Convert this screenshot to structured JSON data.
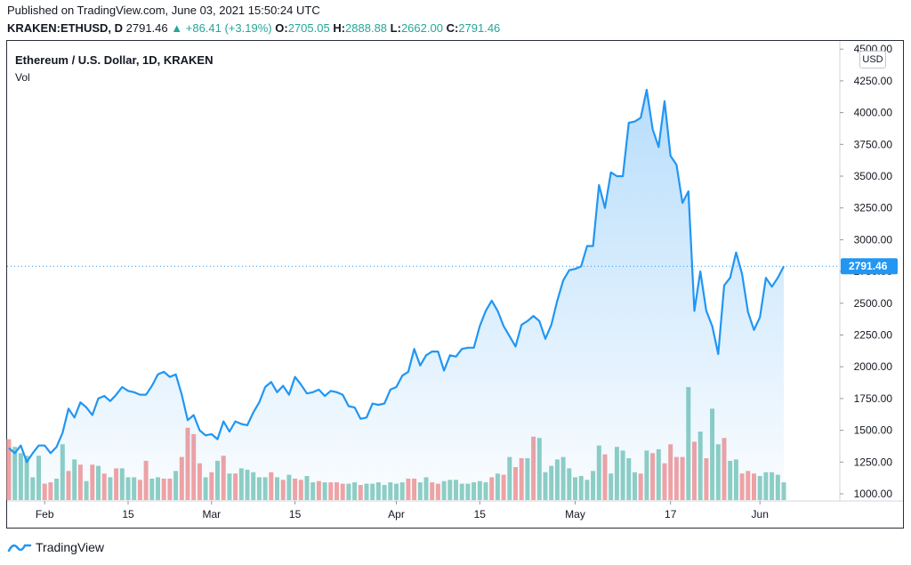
{
  "header": {
    "published": "Published on TradingView.com, June 03, 2021 15:50:24 UTC",
    "symbol": "KRAKEN:ETHUSD, D",
    "last": "2791.46",
    "change": "+86.41 (+3.19%)",
    "open_label": "O:",
    "open": "2705.05",
    "high_label": "H:",
    "high": "2888.88",
    "low_label": "L:",
    "low": "2662.00",
    "close_label": "C:",
    "close": "2791.46",
    "up_color": "#26a69a"
  },
  "pane": {
    "title": "Ethereum / U.S. Dollar, 1D, KRAKEN",
    "vol_label": "Vol",
    "currency_button": "USD"
  },
  "footer": {
    "brand": "TradingView"
  },
  "chart_data": {
    "type": "area",
    "last_price_label": "2791.46",
    "line_color": "#2196f3",
    "vol_up_color": "#8fcfc4",
    "vol_down_color": "#f3a3a3",
    "ylim": [
      950,
      4500
    ],
    "y_ticks": [
      "1000.00",
      "1250.00",
      "1500.00",
      "1750.00",
      "2000.00",
      "2250.00",
      "2500.00",
      "2750.00",
      "3000.00",
      "3250.00",
      "3500.00",
      "3750.00",
      "4000.00",
      "4250.00",
      "4500.00"
    ],
    "x_ticks": [
      {
        "label": "Feb",
        "index": 6
      },
      {
        "label": "15",
        "index": 20
      },
      {
        "label": "Mar",
        "index": 34
      },
      {
        "label": "15",
        "index": 48
      },
      {
        "label": "Apr",
        "index": 65
      },
      {
        "label": "15",
        "index": 79
      },
      {
        "label": "May",
        "index": 95
      },
      {
        "label": "17",
        "index": 111
      },
      {
        "label": "Jun",
        "index": 126
      }
    ],
    "close": [
      1360,
      1320,
      1380,
      1250,
      1320,
      1380,
      1380,
      1320,
      1370,
      1480,
      1670,
      1600,
      1720,
      1680,
      1620,
      1750,
      1770,
      1730,
      1780,
      1840,
      1810,
      1800,
      1780,
      1780,
      1850,
      1940,
      1960,
      1920,
      1940,
      1780,
      1580,
      1620,
      1500,
      1460,
      1470,
      1430,
      1570,
      1490,
      1570,
      1550,
      1540,
      1640,
      1720,
      1840,
      1880,
      1800,
      1850,
      1780,
      1920,
      1860,
      1790,
      1800,
      1820,
      1770,
      1810,
      1800,
      1780,
      1690,
      1680,
      1590,
      1600,
      1710,
      1700,
      1710,
      1820,
      1840,
      1930,
      1960,
      2140,
      2010,
      2090,
      2120,
      2120,
      1970,
      2090,
      2080,
      2140,
      2150,
      2150,
      2320,
      2440,
      2520,
      2440,
      2320,
      2240,
      2160,
      2330,
      2360,
      2400,
      2360,
      2220,
      2330,
      2520,
      2680,
      2760,
      2770,
      2790,
      2950,
      2950,
      3430,
      3250,
      3530,
      3500,
      3500,
      3920,
      3930,
      3960,
      4180,
      3870,
      3730,
      4090,
      3660,
      3590,
      3290,
      3380,
      2440,
      2750,
      2440,
      2320,
      2100,
      2640,
      2700,
      2900,
      2730,
      2430,
      2290,
      2390,
      2700,
      2630,
      2700,
      2791.46
    ],
    "volume": [
      1430,
      1370,
      1320,
      1300,
      1130,
      1300,
      1080,
      1090,
      1120,
      1390,
      1180,
      1270,
      1230,
      1100,
      1230,
      1220,
      1160,
      1130,
      1200,
      1200,
      1130,
      1130,
      1110,
      1260,
      1120,
      1130,
      1120,
      1120,
      1180,
      1290,
      1520,
      1470,
      1240,
      1130,
      1170,
      1260,
      1300,
      1160,
      1160,
      1200,
      1190,
      1170,
      1130,
      1130,
      1170,
      1130,
      1110,
      1150,
      1120,
      1110,
      1140,
      1090,
      1100,
      1090,
      1090,
      1090,
      1080,
      1080,
      1090,
      1070,
      1080,
      1080,
      1090,
      1070,
      1090,
      1080,
      1090,
      1120,
      1120,
      1090,
      1130,
      1090,
      1080,
      1100,
      1110,
      1110,
      1080,
      1080,
      1090,
      1100,
      1090,
      1130,
      1160,
      1150,
      1290,
      1210,
      1280,
      1280,
      1450,
      1440,
      1170,
      1220,
      1270,
      1290,
      1200,
      1130,
      1140,
      1110,
      1180,
      1380,
      1310,
      1160,
      1370,
      1340,
      1280,
      1170,
      1160,
      1340,
      1320,
      1350,
      1240,
      1390,
      1290,
      1290,
      1840,
      1410,
      1490,
      1280,
      1670,
      1390,
      1440,
      1260,
      1270,
      1160,
      1180,
      1160,
      1140,
      1170,
      1170,
      1150,
      1090
    ],
    "volume_up": [
      false,
      true,
      true,
      true,
      true,
      true,
      false,
      false,
      true,
      true,
      false,
      true,
      false,
      true,
      false,
      true,
      false,
      true,
      false,
      true,
      true,
      true,
      false,
      false,
      true,
      true,
      false,
      false,
      true,
      false,
      false,
      false,
      false,
      true,
      false,
      true,
      false,
      true,
      false,
      true,
      true,
      true,
      true,
      true,
      false,
      true,
      false,
      true,
      false,
      false,
      true,
      true,
      false,
      true,
      false,
      false,
      false,
      true,
      true,
      false,
      true,
      true,
      true,
      true,
      true,
      true,
      true,
      false,
      false,
      true,
      true,
      false,
      false,
      true,
      true,
      true,
      true,
      true,
      true,
      true,
      true,
      false,
      true,
      false,
      true,
      false,
      false,
      true,
      false,
      true,
      true,
      true,
      true,
      true,
      true,
      true,
      true,
      true,
      true,
      true,
      false,
      true,
      true,
      true,
      true,
      true,
      false,
      true,
      false,
      true,
      false,
      false,
      false,
      false,
      true,
      false,
      true,
      false,
      true,
      true,
      false,
      true,
      true,
      false,
      false,
      false,
      true,
      true,
      true,
      true,
      true
    ]
  }
}
